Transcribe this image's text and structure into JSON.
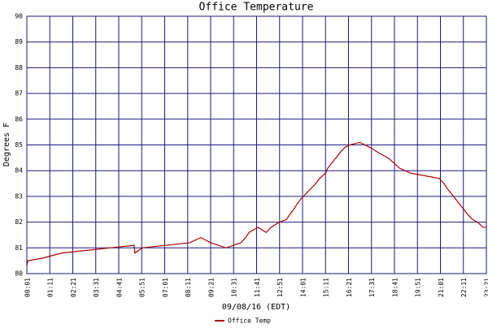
{
  "chart_data": {
    "type": "line",
    "title": "Office Temperature",
    "ylabel": "Degrees F",
    "xlabel": "09/08/16 (EDT)",
    "xlim": [
      1,
      1401
    ],
    "ylim": [
      80,
      90
    ],
    "yticks": [
      80,
      81,
      82,
      83,
      84,
      85,
      86,
      87,
      88,
      89,
      90
    ],
    "xticks": [
      {
        "value": 1,
        "label": "00:01"
      },
      {
        "value": 71,
        "label": "01:11"
      },
      {
        "value": 141,
        "label": "02:21"
      },
      {
        "value": 211,
        "label": "03:31"
      },
      {
        "value": 281,
        "label": "04:41"
      },
      {
        "value": 351,
        "label": "05:51"
      },
      {
        "value": 421,
        "label": "07:01"
      },
      {
        "value": 491,
        "label": "08:11"
      },
      {
        "value": 561,
        "label": "09:21"
      },
      {
        "value": 631,
        "label": "10:31"
      },
      {
        "value": 701,
        "label": "11:41"
      },
      {
        "value": 771,
        "label": "12:51"
      },
      {
        "value": 841,
        "label": "14:01"
      },
      {
        "value": 911,
        "label": "15:11"
      },
      {
        "value": 981,
        "label": "16:21"
      },
      {
        "value": 1051,
        "label": "17:31"
      },
      {
        "value": 1121,
        "label": "18:41"
      },
      {
        "value": 1191,
        "label": "19:51"
      },
      {
        "value": 1261,
        "label": "21:01"
      },
      {
        "value": 1331,
        "label": "22:11"
      },
      {
        "value": 1401,
        "label": "23:21"
      }
    ],
    "grid": true,
    "grid_color": "#1a1a80",
    "legend": "bottom-left",
    "series": [
      {
        "name": "Office Temp",
        "color": "#b00000",
        "x": [
          1,
          4,
          48,
          108,
          328,
          330,
          353,
          497,
          531,
          561,
          608,
          653,
          668,
          678,
          705,
          730,
          745,
          770,
          792,
          802,
          814,
          824,
          836,
          851,
          866,
          881,
          893,
          911,
          918,
          930,
          943,
          955,
          970,
          985,
          1015,
          1047,
          1072,
          1101,
          1119,
          1136,
          1171,
          1257,
          1272,
          1282,
          1295,
          1307,
          1319,
          1332,
          1344,
          1359,
          1374,
          1391,
          1401
        ],
        "values": [
          80.3,
          80.5,
          80.6,
          80.8,
          81.1,
          80.8,
          81.0,
          81.2,
          81.4,
          81.2,
          81.0,
          81.2,
          81.4,
          81.6,
          81.8,
          81.6,
          81.8,
          82.0,
          82.1,
          82.3,
          82.5,
          82.7,
          82.9,
          83.1,
          83.3,
          83.5,
          83.7,
          83.9,
          84.1,
          84.3,
          84.5,
          84.7,
          84.9,
          85.0,
          85.1,
          84.9,
          84.7,
          84.5,
          84.3,
          84.1,
          83.9,
          83.7,
          83.5,
          83.3,
          83.1,
          82.9,
          82.7,
          82.5,
          82.3,
          82.1,
          82.0,
          81.8,
          81.8
        ]
      }
    ]
  }
}
